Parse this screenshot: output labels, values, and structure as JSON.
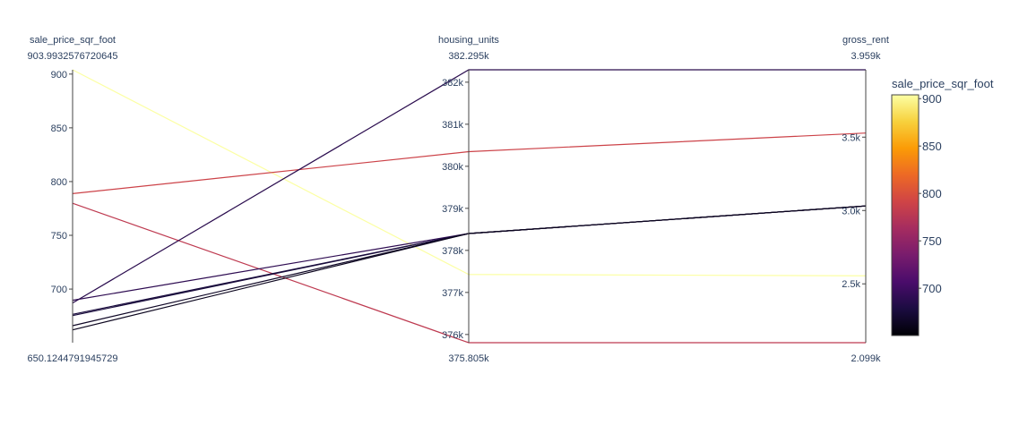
{
  "chart_data": {
    "type": "parallel_coordinates",
    "color_dimension": "sale_price_sqr_foot",
    "colorscale": "Inferno",
    "colorscale_stops": [
      "#000004",
      "#1b0c41",
      "#4a0c6b",
      "#781c6d",
      "#a52c60",
      "#cf4446",
      "#ed6925",
      "#fb9b06",
      "#f7d13d",
      "#fcffa4"
    ],
    "color_range": [
      650.1244791945729,
      903.9932576720645
    ],
    "dimensions": [
      {
        "name": "sale_price_sqr_foot",
        "range": [
          650.1244791945729,
          903.9932576720645
        ],
        "max_label": "903.9932576720645",
        "min_label": "650.1244791945729",
        "ticks": [
          {
            "value": 700,
            "label": "700"
          },
          {
            "value": 750,
            "label": "750"
          },
          {
            "value": 800,
            "label": "800"
          },
          {
            "value": 850,
            "label": "850"
          },
          {
            "value": 900,
            "label": "900"
          }
        ]
      },
      {
        "name": "housing_units",
        "range": [
          375805,
          382295
        ],
        "max_label": "382.295k",
        "min_label": "375.805k",
        "ticks": [
          {
            "value": 376000,
            "label": "376k"
          },
          {
            "value": 377000,
            "label": "377k"
          },
          {
            "value": 378000,
            "label": "378k"
          },
          {
            "value": 379000,
            "label": "379k"
          },
          {
            "value": 380000,
            "label": "380k"
          },
          {
            "value": 381000,
            "label": "381k"
          },
          {
            "value": 382000,
            "label": "382k"
          }
        ]
      },
      {
        "name": "gross_rent",
        "range": [
          2099,
          3959
        ],
        "max_label": "3.959k",
        "min_label": "2.099k",
        "ticks": [
          {
            "value": 2500,
            "label": "2.5k"
          },
          {
            "value": 3000,
            "label": "3.0k"
          },
          {
            "value": 3500,
            "label": "3.5k"
          }
        ]
      }
    ],
    "lines": [
      {
        "sale_price_sqr_foot": 903.99,
        "housing_units": 377427,
        "gross_rent": 2555
      },
      {
        "sale_price_sqr_foot": 788.84,
        "housing_units": 380348,
        "gross_rent": 3528
      },
      {
        "sale_price_sqr_foot": 779.81,
        "housing_units": 375805,
        "gross_rent": 2099
      },
      {
        "sale_price_sqr_foot": 689.56,
        "housing_units": 378401,
        "gross_rent": 3031
      },
      {
        "sale_price_sqr_foot": 687.09,
        "housing_units": 382295,
        "gross_rent": 3959
      },
      {
        "sale_price_sqr_foot": 676.51,
        "housing_units": 378401,
        "gross_rent": 3031
      },
      {
        "sale_price_sqr_foot": 675.35,
        "housing_units": 378401,
        "gross_rent": 3031
      },
      {
        "sale_price_sqr_foot": 665.96,
        "housing_units": 378401,
        "gross_rent": 3031
      },
      {
        "sale_price_sqr_foot": 662.01,
        "housing_units": 378401,
        "gross_rent": 3031
      }
    ],
    "colorbar": {
      "title": "sale_price_sqr_foot",
      "ticks": [
        {
          "value": 700,
          "label": "700"
        },
        {
          "value": 750,
          "label": "750"
        },
        {
          "value": 800,
          "label": "800"
        },
        {
          "value": 850,
          "label": "850"
        },
        {
          "value": 900,
          "label": "900"
        }
      ]
    }
  }
}
